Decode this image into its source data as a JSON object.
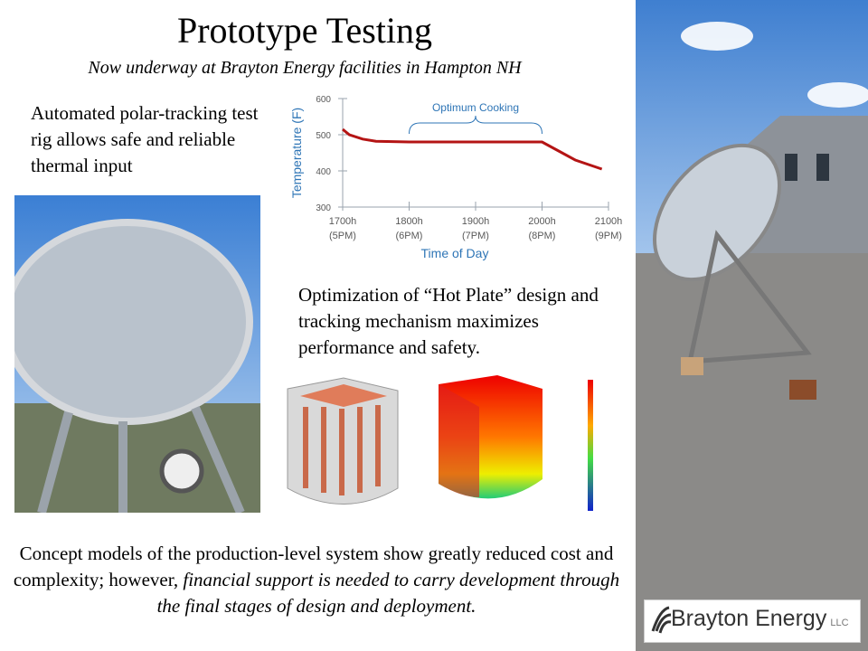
{
  "header": {
    "title": "Prototype Testing",
    "subtitle": "Now underway at Brayton Energy facilities in Hampton NH"
  },
  "rig_text": "Automated polar-tracking test rig allows safe and reliable thermal input",
  "optimization_text": "Optimization of “Hot Plate” design and tracking mechanism maximizes performance and safety.",
  "concept": {
    "parts": [
      "Concept models of the production-level system show greatly reduced cost and complexity; however, ",
      "financial support is needed to carry development through the final stages of design and deployment."
    ]
  },
  "logo": {
    "name": "Brayton Energy",
    "suffix": "LLC"
  },
  "chart_data": {
    "type": "line",
    "x_label": "Time of Day",
    "y_label": "Temperature (F)",
    "annotation": "Optimum Cooking",
    "x": [
      17,
      17.1,
      17.3,
      17.5,
      18,
      19,
      20,
      20.2,
      20.5,
      20.9
    ],
    "series": [
      {
        "name": "Temperature",
        "color": "#b41414",
        "values": [
          515,
          500,
          488,
          482,
          480,
          480,
          480,
          460,
          430,
          405
        ]
      }
    ],
    "xlim": [
      17,
      21
    ],
    "xticks": [
      {
        "value": 17,
        "label": "1700h (5PM)"
      },
      {
        "value": 18,
        "label": "1800h (6PM)"
      },
      {
        "value": 19,
        "label": "1900h (7PM)"
      },
      {
        "value": 20,
        "label": "2000h (8PM)"
      },
      {
        "value": 21,
        "label": "2100h (9PM)"
      }
    ],
    "ylim": [
      300,
      600
    ],
    "yticks": [
      300,
      400,
      500,
      600
    ]
  }
}
